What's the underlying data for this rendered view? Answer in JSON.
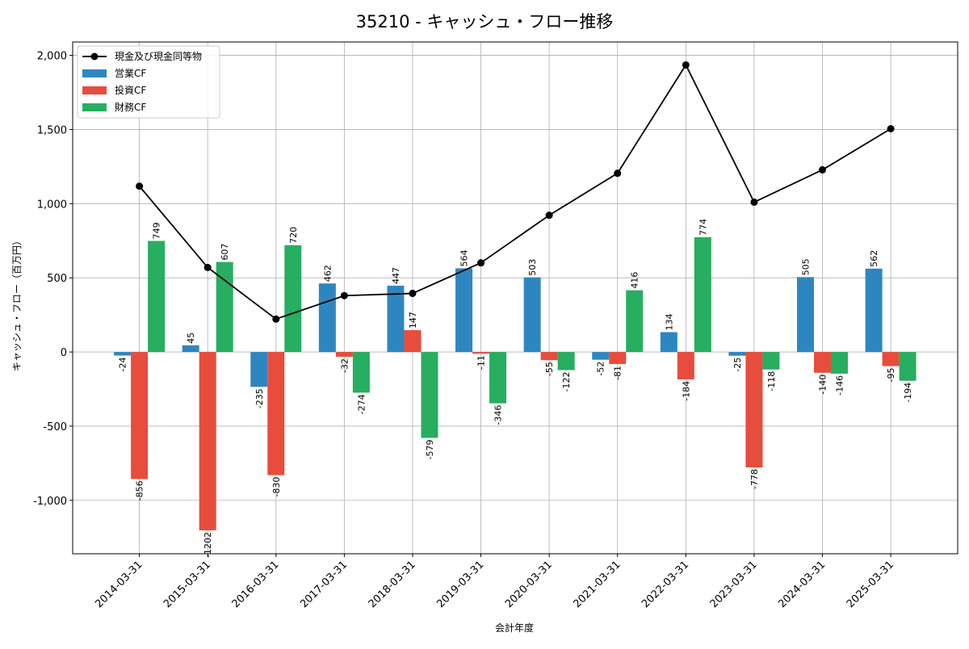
{
  "chart_data": {
    "type": "bar",
    "title": "35210 - キャッシュ・フロー推移",
    "xlabel": "会計年度",
    "ylabel": "キャッシュ・フロー（百万円）",
    "ylim": [
      -1360,
      2090
    ],
    "yticks": [
      -1000,
      -500,
      0,
      500,
      1000,
      1500,
      2000
    ],
    "ytick_labels": [
      "-1,000",
      "-500",
      "0",
      "500",
      "1,000",
      "1,500",
      "2,000"
    ],
    "grid": true,
    "legend_position": "top-left",
    "categories": [
      "2014-03-31",
      "2015-03-31",
      "2016-03-31",
      "2017-03-31",
      "2018-03-31",
      "2019-03-31",
      "2020-03-31",
      "2021-03-31",
      "2022-03-31",
      "2023-03-31",
      "2024-03-31",
      "2025-03-31"
    ],
    "series": [
      {
        "name": "営業CF",
        "kind": "bar",
        "color": "#2e86c1",
        "values": [
          -24,
          45,
          -235,
          462,
          447,
          564,
          503,
          -52,
          134,
          -25,
          505,
          562
        ]
      },
      {
        "name": "投資CF",
        "kind": "bar",
        "color": "#e74c3c",
        "values": [
          -856,
          -1202,
          -830,
          -32,
          147,
          -11,
          -55,
          -81,
          -184,
          -778,
          -140,
          -95
        ]
      },
      {
        "name": "財務CF",
        "kind": "bar",
        "color": "#27ae60",
        "values": [
          749,
          607,
          720,
          -274,
          -579,
          -346,
          -122,
          416,
          774,
          -118,
          -146,
          -194
        ]
      }
    ],
    "line_series": {
      "name": "現金及び現金同等物",
      "kind": "line",
      "color": "#000000",
      "values": [
        1118,
        570,
        222,
        380,
        395,
        601,
        922,
        1205,
        1935,
        1010,
        1228,
        1505
      ]
    }
  }
}
